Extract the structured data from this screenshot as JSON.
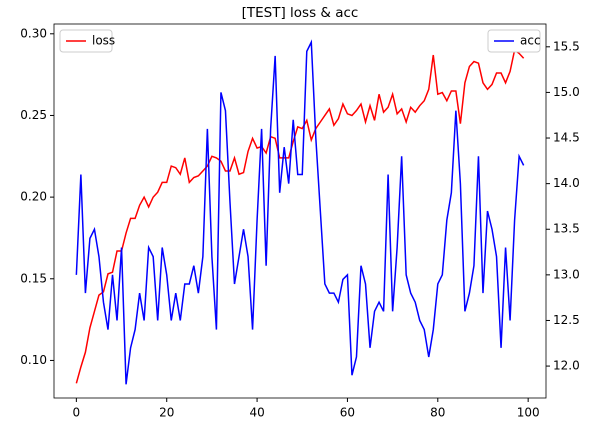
{
  "chart_data": {
    "type": "line",
    "title": "[TEST] loss & acc",
    "x": [
      0,
      1,
      2,
      3,
      4,
      5,
      6,
      7,
      8,
      9,
      10,
      11,
      12,
      13,
      14,
      15,
      16,
      17,
      18,
      19,
      20,
      21,
      22,
      23,
      24,
      25,
      26,
      27,
      28,
      29,
      30,
      31,
      32,
      33,
      34,
      35,
      36,
      37,
      38,
      39,
      40,
      41,
      42,
      43,
      44,
      45,
      46,
      47,
      48,
      49,
      50,
      51,
      52,
      53,
      54,
      55,
      56,
      57,
      58,
      59,
      60,
      61,
      62,
      63,
      64,
      65,
      66,
      67,
      68,
      69,
      70,
      71,
      72,
      73,
      74,
      75,
      76,
      77,
      78,
      79,
      80,
      81,
      82,
      83,
      84,
      85,
      86,
      87,
      88,
      89,
      90,
      91,
      92,
      93,
      94,
      95,
      96,
      97,
      98,
      99
    ],
    "series": [
      {
        "name": "loss",
        "color": "#ff0000",
        "axis": "y",
        "values": [
          0.086,
          0.096,
          0.105,
          0.12,
          0.13,
          0.14,
          0.142,
          0.153,
          0.154,
          0.167,
          0.167,
          0.178,
          0.187,
          0.187,
          0.195,
          0.2,
          0.194,
          0.2,
          0.203,
          0.209,
          0.209,
          0.219,
          0.218,
          0.214,
          0.224,
          0.209,
          0.212,
          0.213,
          0.216,
          0.219,
          0.225,
          0.224,
          0.222,
          0.216,
          0.216,
          0.224,
          0.214,
          0.215,
          0.228,
          0.236,
          0.23,
          0.231,
          0.227,
          0.237,
          0.236,
          0.224,
          0.224,
          0.224,
          0.234,
          0.243,
          0.242,
          0.247,
          0.235,
          0.242,
          0.246,
          0.25,
          0.254,
          0.244,
          0.248,
          0.257,
          0.251,
          0.25,
          0.253,
          0.257,
          0.246,
          0.256,
          0.247,
          0.263,
          0.252,
          0.255,
          0.263,
          0.251,
          0.254,
          0.246,
          0.255,
          0.252,
          0.256,
          0.259,
          0.266,
          0.287,
          0.263,
          0.264,
          0.259,
          0.265,
          0.265,
          0.245,
          0.27,
          0.28,
          0.283,
          0.282,
          0.27,
          0.266,
          0.269,
          0.276,
          0.276,
          0.27,
          0.277,
          0.29,
          0.288,
          0.285
        ]
      },
      {
        "name": "acc",
        "color": "#0000ff",
        "axis": "y2",
        "values": [
          13.0,
          14.1,
          12.8,
          13.4,
          13.5,
          13.2,
          12.7,
          12.4,
          13.0,
          12.5,
          13.3,
          11.8,
          12.2,
          12.4,
          12.8,
          12.5,
          13.3,
          13.2,
          12.5,
          13.3,
          13.0,
          12.5,
          12.8,
          12.5,
          12.9,
          12.9,
          13.1,
          12.8,
          13.2,
          14.6,
          13.2,
          12.4,
          15.0,
          14.8,
          13.8,
          12.9,
          13.2,
          13.5,
          13.2,
          12.4,
          13.6,
          14.6,
          13.1,
          14.6,
          15.4,
          13.9,
          14.4,
          14.0,
          14.7,
          14.1,
          14.1,
          15.45,
          15.55,
          14.5,
          13.7,
          12.9,
          12.8,
          12.8,
          12.7,
          12.95,
          13.0,
          11.9,
          12.1,
          13.1,
          12.9,
          12.2,
          12.6,
          12.7,
          12.6,
          14.1,
          12.6,
          13.3,
          14.3,
          13.0,
          12.8,
          12.7,
          12.5,
          12.4,
          12.1,
          12.4,
          12.9,
          13.0,
          13.6,
          13.9,
          14.8,
          14.0,
          12.6,
          12.8,
          13.1,
          14.3,
          12.8,
          13.7,
          13.5,
          13.2,
          12.2,
          13.3,
          12.5,
          13.6,
          14.3,
          14.2
        ]
      }
    ],
    "xlim": [
      -4.95,
      103.95
    ],
    "xticks": [
      0,
      20,
      40,
      60,
      80,
      100
    ],
    "ylim": [
      0.077,
      0.306
    ],
    "yticks": [
      {
        "value": 0.1,
        "label": "0.10"
      },
      0.15,
      {
        "value": 0.2,
        "label": "0.20"
      },
      0.25,
      {
        "value": 0.3,
        "label": "0.30"
      }
    ],
    "y2lim": [
      11.65,
      15.75
    ],
    "y2ticks": [
      {
        "value": 12,
        "label": "12.0"
      },
      12.5,
      {
        "value": 13,
        "label": "13.0"
      },
      13.5,
      {
        "value": 14,
        "label": "14.0"
      },
      14.5,
      {
        "value": 15,
        "label": "15.0"
      },
      15.5
    ],
    "legend": {
      "loss": "upper left",
      "acc": "upper right"
    }
  }
}
